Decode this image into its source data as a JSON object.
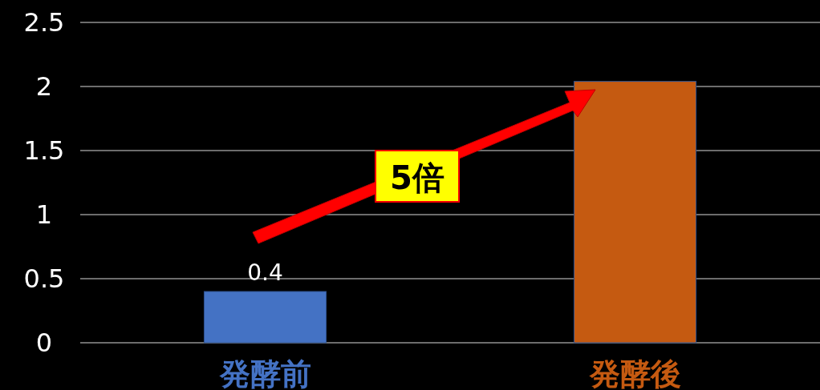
{
  "chart_data": {
    "type": "bar",
    "categories": [
      "発酵前",
      "発酵後"
    ],
    "values": [
      0.4,
      2.04
    ],
    "colors": [
      "#4472c4",
      "#c55a11"
    ],
    "value_labels": [
      "0.4",
      null
    ],
    "ylim": [
      0,
      2.5
    ],
    "yticks": [
      0,
      0.5,
      1,
      1.5,
      2,
      2.5
    ],
    "grid": "y",
    "annotations": [
      "5倍"
    ]
  }
}
